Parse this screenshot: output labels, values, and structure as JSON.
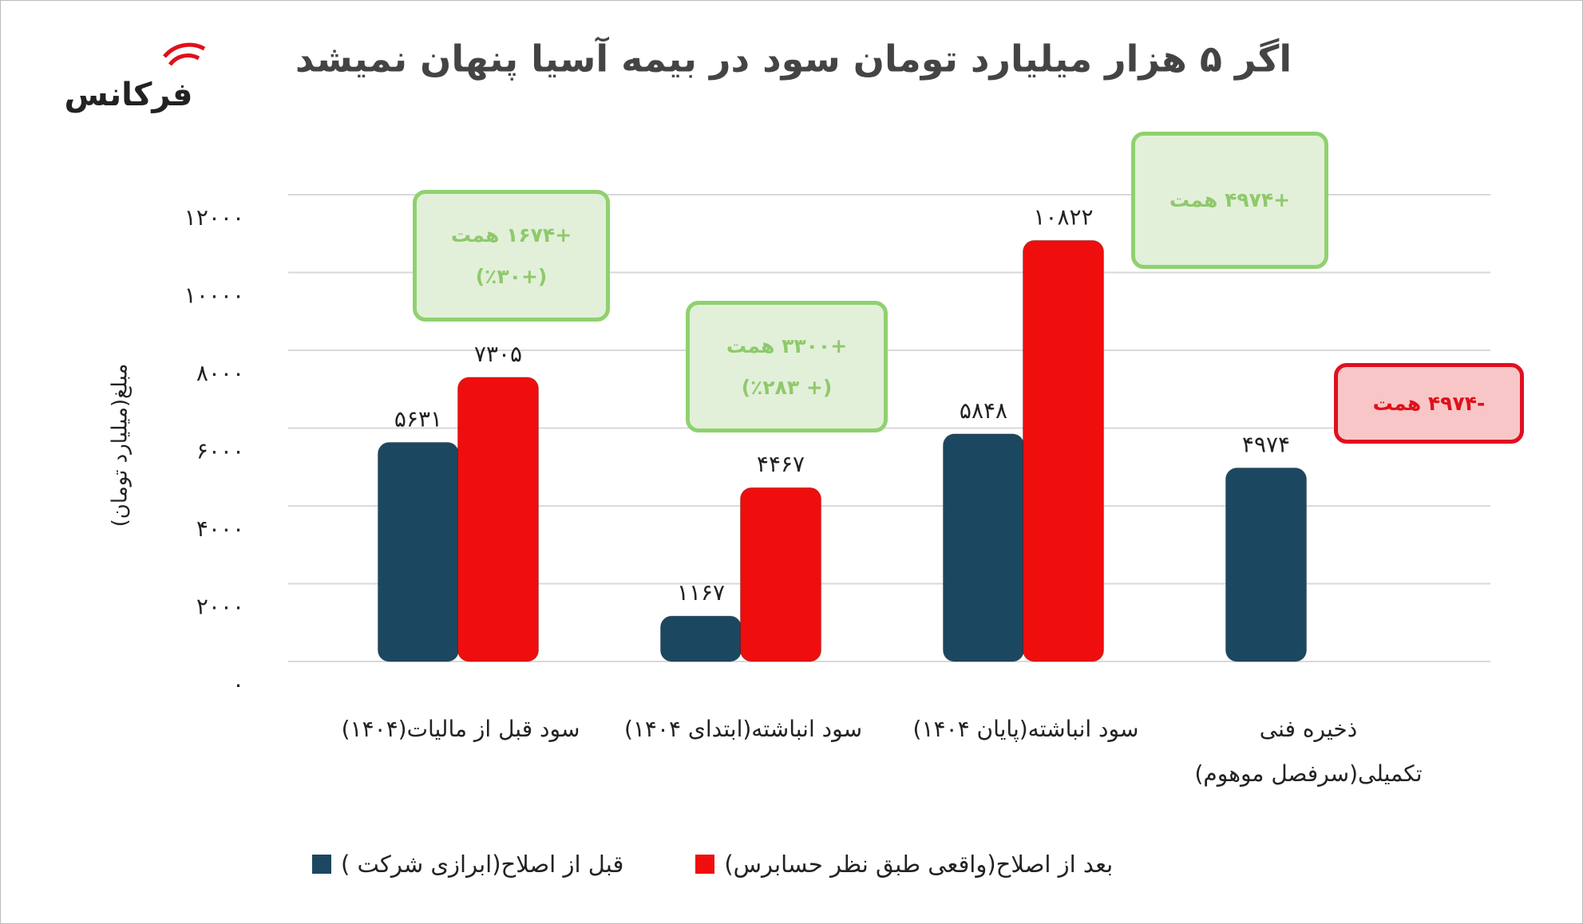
{
  "chart_data": {
    "type": "bar",
    "title": "اگر ۵ هزار میلیارد تومان سود در بیمه آسیا پنهان نمیشد",
    "logo": "فرکانس",
    "y_label": "مبلغ(میلیارد تومان)",
    "categories": [
      "سود قبل از مالیات(۱۴۰۴)",
      "سود انباشته(ابتدای ۱۴۰۴)",
      "سود انباشته(پایان ۱۴۰۴)",
      "ذخیره فنی تکمیلی(سرفصل موهوم)"
    ],
    "series": [
      {
        "name": "قبل از اصلاح(ابرازی شرکت )",
        "color": "#1c4760",
        "values": [
          5631,
          1167,
          5848,
          4974
        ],
        "value_labels": [
          "۵۶۳۱",
          "۱۱۶۷",
          "۵۸۴۸",
          "۴۹۷۴"
        ]
      },
      {
        "name": "بعد از اصلاح(واقعی طبق نظر حسابرس)",
        "color": "#f00d0d",
        "values": [
          7305,
          4467,
          10822,
          null
        ],
        "value_labels": [
          "۷۳۰۵",
          "۴۴۶۷",
          "۱۰۸۲۲",
          null
        ]
      }
    ],
    "ylim": [
      0,
      12000
    ],
    "yticks": [
      {
        "value": 0,
        "label": "۰"
      },
      {
        "value": 2000,
        "label": "۲۰۰۰"
      },
      {
        "value": 4000,
        "label": "۴۰۰۰"
      },
      {
        "value": 6000,
        "label": "۶۰۰۰"
      },
      {
        "value": 8000,
        "label": "۸۰۰۰"
      },
      {
        "value": 10000,
        "label": "۱۰۰۰۰"
      },
      {
        "value": 12000,
        "label": "۱۲۰۰۰"
      }
    ],
    "grid": true,
    "annotations": [
      {
        "lines": [
          "+۱۶۷۴ همت",
          "(+٪۳۰)"
        ],
        "color": "#8fd16f"
      },
      {
        "lines": [
          "+۳۳۰۰ همت",
          "(+ ٪۲۸۳)"
        ],
        "color": "#8fd16f"
      },
      {
        "lines": [
          "+۴۹۷۴ همت"
        ],
        "color": "#8fd16f"
      },
      {
        "lines": [
          "-۴۹۷۴ همت"
        ],
        "color": "#e01020"
      }
    ]
  }
}
